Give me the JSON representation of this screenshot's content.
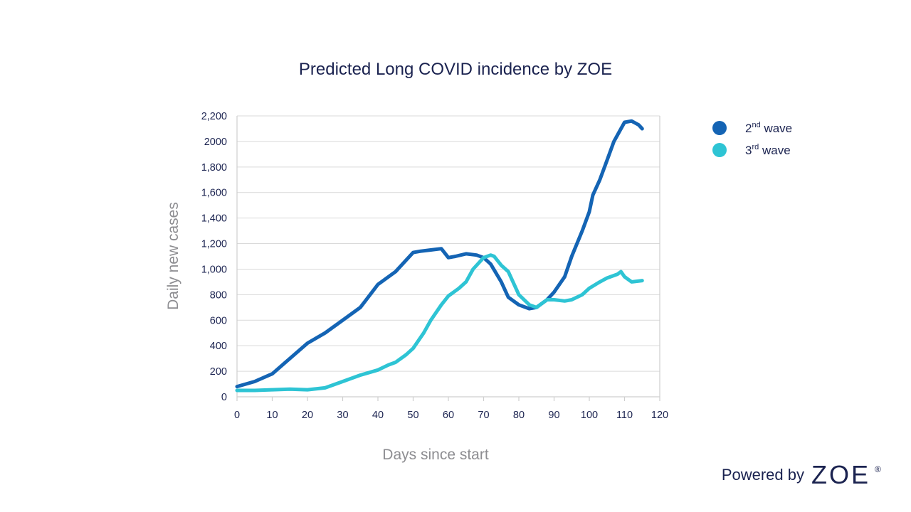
{
  "chart_data": {
    "type": "line",
    "title": "Predicted Long COVID incidence by ZOE",
    "xlabel": "Days since start",
    "ylabel": "Daily new cases",
    "xlim": [
      0,
      120
    ],
    "ylim": [
      0,
      2200
    ],
    "x_ticks": [
      0,
      10,
      20,
      30,
      40,
      50,
      60,
      70,
      80,
      90,
      100,
      110,
      120
    ],
    "x_tick_labels": [
      "0",
      "10",
      "20",
      "30",
      "40",
      "50",
      "60",
      "70",
      "80",
      "90",
      "100",
      "110",
      "120"
    ],
    "y_ticks": [
      0,
      200,
      400,
      600,
      800,
      1000,
      1200,
      1400,
      1600,
      1800,
      2000,
      2200
    ],
    "y_tick_labels": [
      "0",
      "200",
      "400",
      "600",
      "800",
      "1,000",
      "1,200",
      "1,400",
      "1,600",
      "1,800",
      "2000",
      "2,200"
    ],
    "grid": true,
    "legend_position": "top-right",
    "series": [
      {
        "name": "2nd wave",
        "legend_base": "2",
        "legend_sup": "nd",
        "legend_rest": " wave",
        "color": "#1464b4",
        "x": [
          0,
          5,
          10,
          15,
          20,
          25,
          30,
          35,
          40,
          45,
          50,
          52,
          55,
          58,
          60,
          62,
          65,
          68,
          70,
          72,
          75,
          77,
          80,
          83,
          85,
          88,
          90,
          93,
          95,
          98,
          100,
          101,
          103,
          105,
          107,
          109,
          110,
          112,
          114,
          115
        ],
        "y": [
          80,
          120,
          180,
          300,
          420,
          500,
          600,
          700,
          880,
          980,
          1130,
          1140,
          1150,
          1160,
          1090,
          1100,
          1120,
          1110,
          1090,
          1040,
          900,
          780,
          720,
          690,
          700,
          760,
          820,
          940,
          1100,
          1300,
          1450,
          1580,
          1700,
          1850,
          2000,
          2100,
          2150,
          2160,
          2130,
          2100
        ]
      },
      {
        "name": "3rd wave",
        "legend_base": "3",
        "legend_sup": "rd",
        "legend_rest": " wave",
        "color": "#2ec4d4",
        "x": [
          0,
          5,
          10,
          15,
          20,
          25,
          30,
          35,
          40,
          43,
          45,
          48,
          50,
          53,
          55,
          58,
          60,
          63,
          65,
          67,
          70,
          72,
          73,
          75,
          77,
          80,
          83,
          85,
          88,
          90,
          93,
          95,
          98,
          100,
          103,
          105,
          108,
          109,
          110,
          112,
          115
        ],
        "y": [
          50,
          50,
          55,
          60,
          55,
          70,
          120,
          170,
          210,
          250,
          270,
          330,
          380,
          500,
          600,
          720,
          790,
          850,
          900,
          1000,
          1090,
          1110,
          1100,
          1030,
          980,
          800,
          720,
          700,
          760,
          760,
          750,
          760,
          800,
          850,
          900,
          930,
          960,
          980,
          940,
          900,
          910
        ]
      }
    ]
  },
  "branding": {
    "powered_by": "Powered by",
    "brand": "ZOE",
    "registered": "®"
  }
}
